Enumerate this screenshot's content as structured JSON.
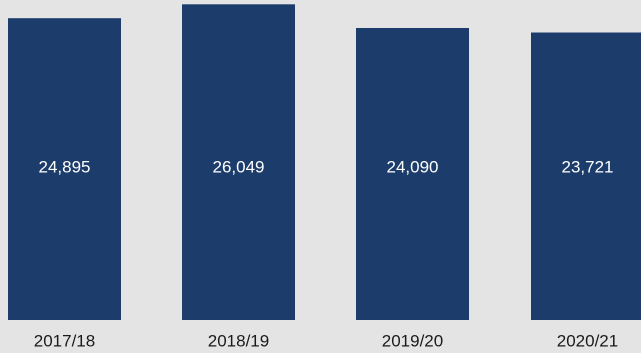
{
  "chart_data": {
    "type": "bar",
    "categories": [
      "2017/18",
      "2018/19",
      "2019/20",
      "2020/21"
    ],
    "values": [
      24895,
      26049,
      24090,
      23721
    ],
    "value_labels": [
      "24,895",
      "26,049",
      "24,090",
      "23,721"
    ],
    "title": "",
    "xlabel": "",
    "ylabel": "",
    "ylim": [
      0,
      26400
    ],
    "grid": false,
    "legend": "none",
    "bar_color": "#1c3d6b",
    "background_color": "#e4e4e4"
  }
}
